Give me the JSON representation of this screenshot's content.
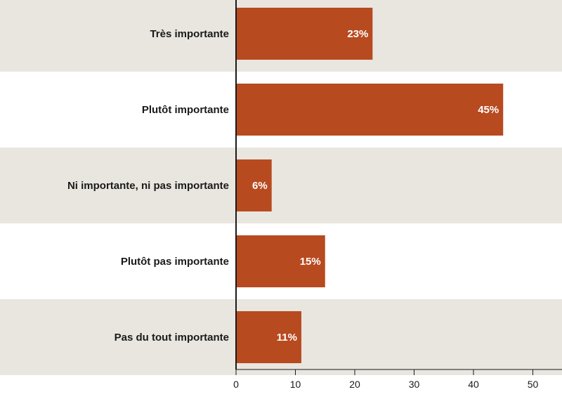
{
  "chart_data": {
    "type": "bar",
    "orientation": "horizontal",
    "categories": [
      "Très importante",
      "Plutôt importante",
      "Ni importante, ni pas importante",
      "Plutôt pas importante",
      "Pas du tout importante"
    ],
    "values": [
      23,
      45,
      6,
      15,
      11
    ],
    "value_labels": [
      "23%",
      "45%",
      "6%",
      "15%",
      "11%"
    ],
    "xticks": [
      0,
      10,
      20,
      30,
      40,
      50
    ],
    "xlim": [
      0,
      55
    ],
    "title": "",
    "xlabel": "",
    "ylabel": "",
    "grid": false,
    "colors": {
      "bar": "#b84a20",
      "band_shaded": "#e8e6df",
      "band_plain": "#ffffff",
      "axis": "#1a1a1a"
    }
  }
}
